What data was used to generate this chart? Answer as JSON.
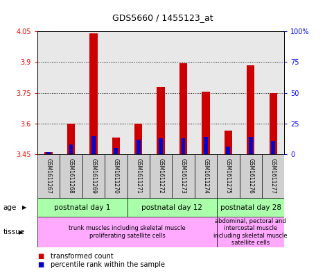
{
  "title": "GDS5660 / 1455123_at",
  "samples": [
    "GSM1611267",
    "GSM1611268",
    "GSM1611269",
    "GSM1611270",
    "GSM1611271",
    "GSM1611272",
    "GSM1611273",
    "GSM1611274",
    "GSM1611275",
    "GSM1611276",
    "GSM1611277"
  ],
  "transformed_count": [
    3.462,
    3.6,
    4.04,
    3.53,
    3.6,
    3.78,
    3.895,
    3.755,
    3.565,
    3.885,
    3.75
  ],
  "percentile_rank": [
    2,
    8,
    15,
    5,
    12,
    13,
    13,
    14,
    6,
    14,
    11
  ],
  "ymin": 3.45,
  "ymax": 4.05,
  "yticks": [
    3.45,
    3.6,
    3.75,
    3.9,
    4.05
  ],
  "ytick_labels": [
    "3.45",
    "3.6",
    "3.75",
    "3.9",
    "4.05"
  ],
  "y2ticks": [
    0,
    25,
    50,
    75,
    100
  ],
  "y2tick_labels": [
    "0",
    "25",
    "50",
    "75",
    "100%"
  ],
  "bar_color": "#cc0000",
  "percentile_color": "#0000cc",
  "age_groups": [
    {
      "label": "postnatal day 1",
      "start": 0,
      "end": 3,
      "color": "#aaffaa"
    },
    {
      "label": "postnatal day 12",
      "start": 4,
      "end": 7,
      "color": "#aaffaa"
    },
    {
      "label": "postnatal day 28",
      "start": 8,
      "end": 10,
      "color": "#aaffaa"
    }
  ],
  "tissue_groups": [
    {
      "label": "trunk muscles including skeletal muscle\nproliferating satellite cells",
      "start": 0,
      "end": 7,
      "color": "#ffaaff"
    },
    {
      "label": "abdominal, pectoral and\nintercostal muscle\nincluding skeletal muscle\nsatellite cells",
      "start": 8,
      "end": 10,
      "color": "#ffaaff"
    }
  ],
  "bar_width": 0.35,
  "percentile_bar_width": 0.18,
  "plot_bg_color": "#e8e8e8",
  "label_bg_color": "#d0d0d0"
}
